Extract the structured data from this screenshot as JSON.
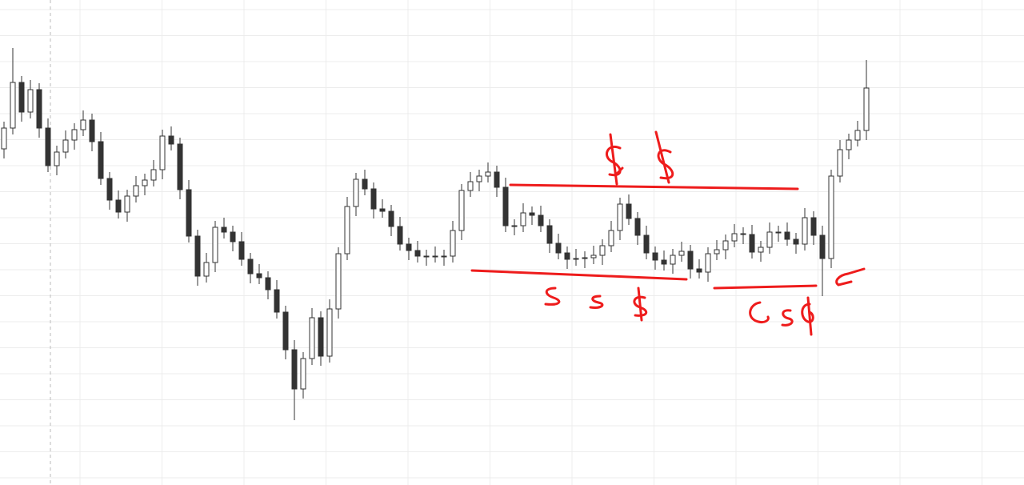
{
  "chart_data": {
    "type": "candlestick",
    "color": "#333333",
    "ylim": [
      0,
      606
    ],
    "grid": true,
    "open": [
      420,
      446,
      503,
      466,
      494,
      446,
      399,
      416,
      431,
      444,
      456,
      429,
      383,
      356,
      341,
      361,
      374,
      381,
      394,
      436,
      426,
      369,
      311,
      261,
      278,
      322,
      316,
      304,
      282,
      264,
      259,
      244,
      216,
      169,
      120,
      158,
      209,
      161,
      220,
      289,
      348,
      382,
      370,
      345,
      342,
      323,
      301,
      293,
      286,
      286,
      286,
      286,
      318,
      368,
      379,
      386,
      391,
      372,
      324,
      324,
      340,
      337,
      324,
      302,
      290,
      282,
      283,
      284,
      287,
      299,
      318,
      351,
      333,
      312,
      290,
      281,
      276,
      287,
      292,
      270,
      266,
      289,
      294,
      305,
      314,
      313,
      291,
      297,
      316,
      316,
      307,
      301,
      334,
      312,
      283,
      386,
      419,
      431,
      443
    ],
    "high": [
      454,
      546,
      511,
      506,
      502,
      458,
      424,
      443,
      452,
      468,
      464,
      441,
      391,
      368,
      369,
      386,
      389,
      406,
      444,
      448,
      434,
      381,
      319,
      290,
      330,
      334,
      324,
      316,
      290,
      276,
      267,
      256,
      224,
      181,
      166,
      221,
      217,
      232,
      297,
      360,
      390,
      394,
      378,
      357,
      350,
      335,
      309,
      305,
      294,
      298,
      294,
      330,
      376,
      391,
      394,
      403,
      399,
      384,
      332,
      352,
      348,
      349,
      332,
      314,
      298,
      295,
      292,
      299,
      307,
      330,
      359,
      363,
      341,
      324,
      298,
      293,
      295,
      304,
      300,
      282,
      297,
      306,
      313,
      326,
      322,
      325,
      305,
      328,
      324,
      328,
      315,
      346,
      342,
      324,
      394,
      431,
      439,
      455,
      531
    ],
    "low": [
      408,
      438,
      454,
      458,
      434,
      391,
      387,
      408,
      419,
      436,
      417,
      375,
      344,
      333,
      329,
      353,
      362,
      373,
      382,
      418,
      357,
      303,
      249,
      253,
      266,
      308,
      292,
      274,
      252,
      251,
      232,
      208,
      157,
      81,
      108,
      150,
      149,
      153,
      208,
      281,
      336,
      362,
      333,
      334,
      311,
      293,
      281,
      278,
      274,
      278,
      274,
      278,
      306,
      360,
      367,
      378,
      360,
      316,
      312,
      316,
      325,
      316,
      290,
      282,
      270,
      274,
      271,
      276,
      275,
      291,
      306,
      325,
      300,
      282,
      269,
      268,
      264,
      279,
      258,
      258,
      254,
      281,
      282,
      297,
      301,
      283,
      279,
      289,
      304,
      299,
      289,
      293,
      300,
      236,
      271,
      378,
      407,
      423,
      431
    ],
    "close": [
      446,
      503,
      466,
      494,
      446,
      399,
      416,
      431,
      444,
      456,
      429,
      383,
      356,
      341,
      361,
      374,
      381,
      394,
      436,
      426,
      369,
      311,
      261,
      278,
      322,
      316,
      304,
      282,
      264,
      259,
      244,
      216,
      169,
      120,
      158,
      209,
      161,
      220,
      289,
      348,
      382,
      370,
      345,
      342,
      323,
      301,
      293,
      286,
      286,
      286,
      286,
      318,
      368,
      379,
      386,
      391,
      372,
      324,
      324,
      340,
      337,
      324,
      302,
      290,
      282,
      283,
      284,
      287,
      299,
      318,
      351,
      333,
      312,
      290,
      281,
      276,
      287,
      292,
      270,
      266,
      289,
      294,
      305,
      314,
      313,
      291,
      297,
      316,
      316,
      307,
      301,
      334,
      312,
      283,
      386,
      419,
      431,
      443,
      496
    ]
  }
}
